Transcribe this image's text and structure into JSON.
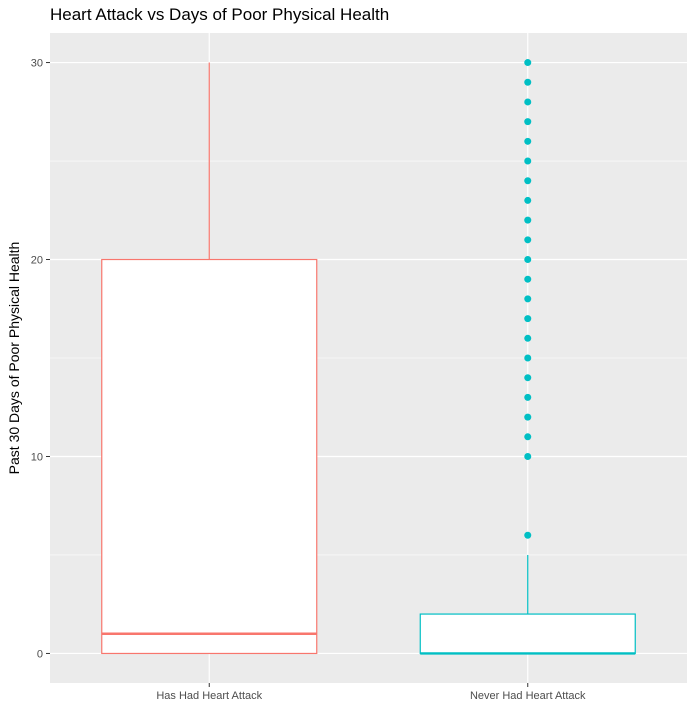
{
  "chart_data": {
    "type": "box",
    "title": "Heart Attack vs Days of Poor Physical Health",
    "xlabel": "",
    "ylabel": "Past 30 Days of Poor Physical Health",
    "ylim": [
      -1.5,
      31.5
    ],
    "yticks": [
      0,
      10,
      20,
      30
    ],
    "grid": true,
    "legend": "none",
    "categories": [
      "Has Had Heart Attack",
      "Never Had Heart Attack"
    ],
    "boxes": [
      {
        "category": "Has Had Heart Attack",
        "min": 0,
        "q1": 0,
        "median": 1,
        "q3": 20,
        "max": 30,
        "outliers": [],
        "color": "#f8766d"
      },
      {
        "category": "Never Had Heart Attack",
        "min": 0,
        "q1": 0,
        "median": 0,
        "q3": 2,
        "max": 5,
        "outliers": [
          6,
          10,
          11,
          12,
          13,
          14,
          15,
          16,
          17,
          18,
          19,
          20,
          21,
          22,
          23,
          24,
          25,
          26,
          27,
          28,
          29,
          30
        ],
        "color": "#00bfc4"
      }
    ],
    "panel_background": "#ebebeb",
    "grid_color": "#ffffff"
  }
}
